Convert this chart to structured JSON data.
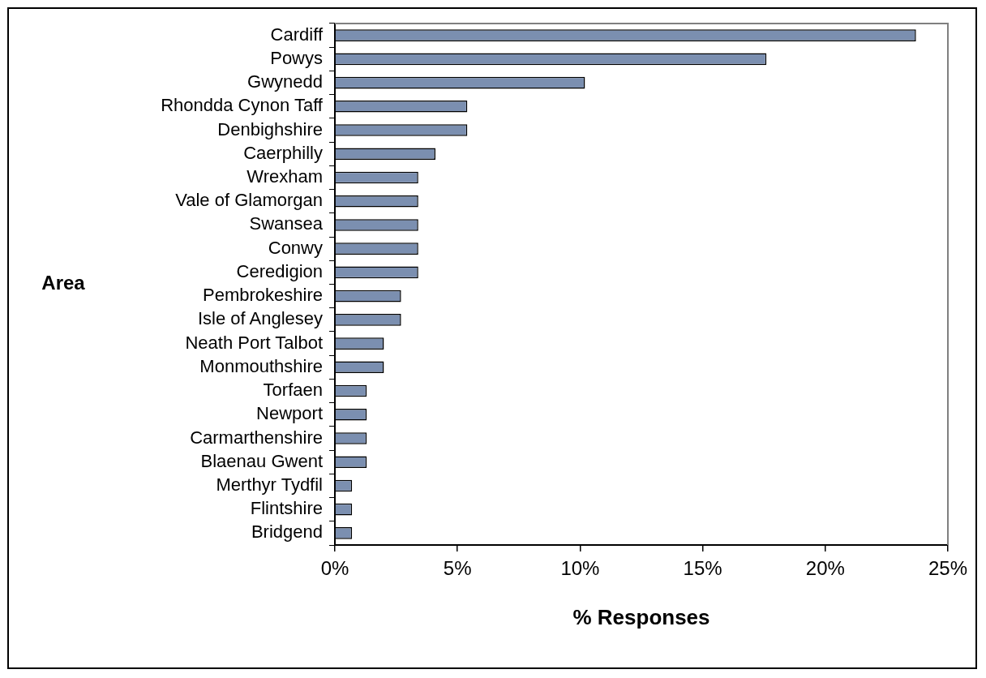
{
  "chart_data": {
    "type": "bar",
    "orientation": "horizontal",
    "xlabel": "% Responses",
    "ylabel": "Area",
    "categories": [
      "Cardiff",
      "Powys",
      "Gwynedd",
      "Rhondda Cynon Taff",
      "Denbighshire",
      "Caerphilly",
      "Wrexham",
      "Vale of Glamorgan",
      "Swansea",
      "Conwy",
      "Ceredigion",
      "Pembrokeshire",
      "Isle of Anglesey",
      "Neath Port Talbot",
      "Monmouthshire",
      "Torfaen",
      "Newport",
      "Carmarthenshire",
      "Blaenau Gwent",
      "Merthyr Tydfil",
      "Flintshire",
      "Bridgend"
    ],
    "values": [
      23.7,
      17.6,
      10.2,
      5.4,
      5.4,
      4.1,
      3.4,
      3.4,
      3.4,
      3.4,
      3.4,
      2.7,
      2.7,
      2.0,
      2.0,
      1.3,
      1.3,
      1.3,
      1.3,
      0.7,
      0.7,
      0.7
    ],
    "color": "#7b8fb0",
    "xlim": [
      0,
      25
    ],
    "xticks": [
      {
        "value": 0,
        "label": "0%"
      },
      {
        "value": 5,
        "label": "5%"
      },
      {
        "value": 10,
        "label": "10%"
      },
      {
        "value": 15,
        "label": "15%"
      },
      {
        "value": 20,
        "label": "20%"
      },
      {
        "value": 25,
        "label": "25%"
      }
    ],
    "grid": false,
    "legend": false
  }
}
